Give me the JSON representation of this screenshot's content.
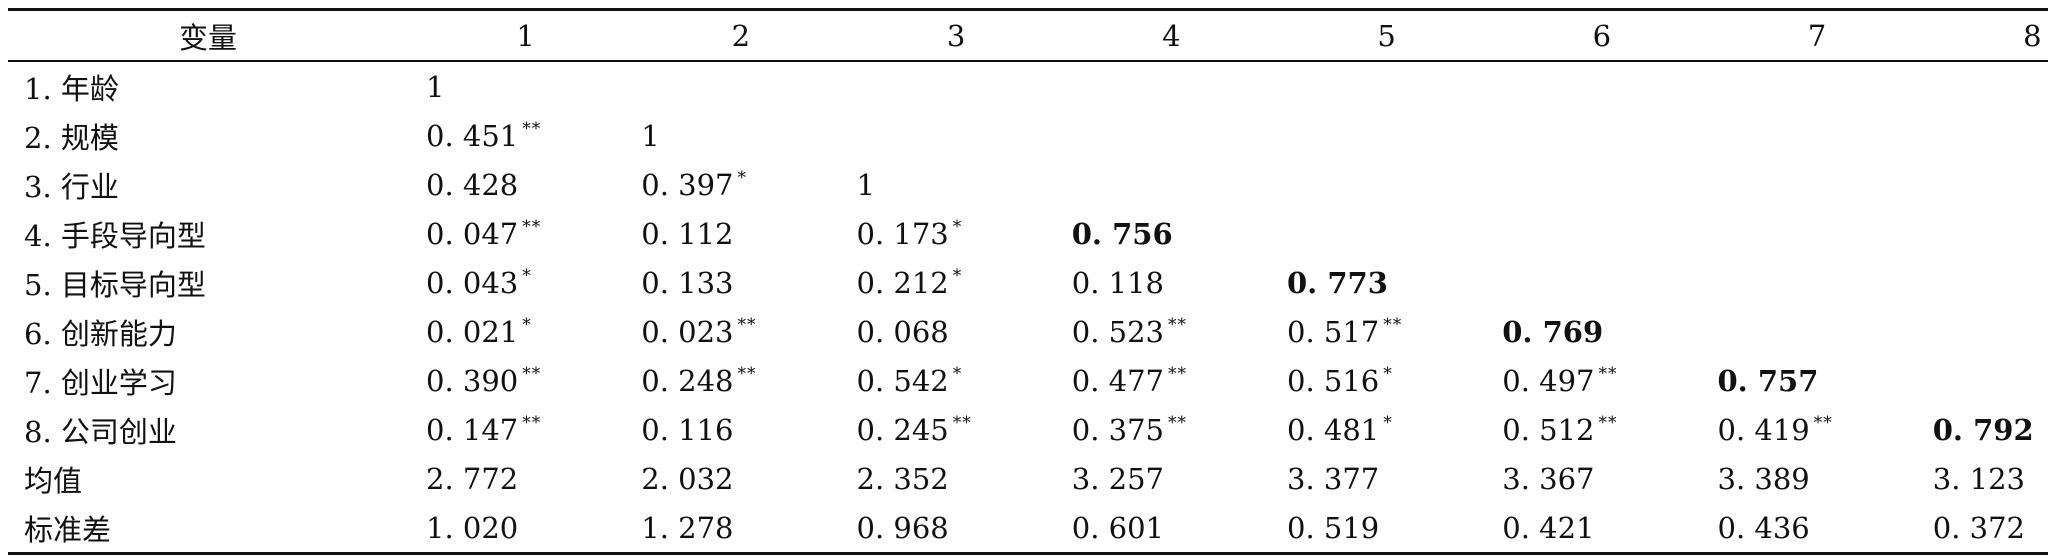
{
  "table": {
    "header": [
      "变量",
      "1",
      "2",
      "3",
      "4",
      "5",
      "6",
      "7",
      "8"
    ],
    "rows": [
      {
        "label": "1. 年龄",
        "cells": [
          {
            "v": "1"
          },
          {
            "v": ""
          },
          {
            "v": ""
          },
          {
            "v": ""
          },
          {
            "v": ""
          },
          {
            "v": ""
          },
          {
            "v": ""
          },
          {
            "v": ""
          }
        ]
      },
      {
        "label": "2. 规模",
        "cells": [
          {
            "v": "0. 451",
            "s": "**"
          },
          {
            "v": "1"
          },
          {
            "v": ""
          },
          {
            "v": ""
          },
          {
            "v": ""
          },
          {
            "v": ""
          },
          {
            "v": ""
          },
          {
            "v": ""
          }
        ]
      },
      {
        "label": "3. 行业",
        "cells": [
          {
            "v": "0. 428"
          },
          {
            "v": "0. 397",
            "s": "*"
          },
          {
            "v": "1"
          },
          {
            "v": ""
          },
          {
            "v": ""
          },
          {
            "v": ""
          },
          {
            "v": ""
          },
          {
            "v": ""
          }
        ]
      },
      {
        "label": "4. 手段导向型",
        "cells": [
          {
            "v": "0. 047",
            "s": "**"
          },
          {
            "v": "0. 112"
          },
          {
            "v": "0. 173",
            "s": "*"
          },
          {
            "v": "0. 756",
            "b": true
          },
          {
            "v": ""
          },
          {
            "v": ""
          },
          {
            "v": ""
          },
          {
            "v": ""
          }
        ]
      },
      {
        "label": "5. 目标导向型",
        "cells": [
          {
            "v": "0. 043",
            "s": "*"
          },
          {
            "v": "0. 133"
          },
          {
            "v": "0. 212",
            "s": "*"
          },
          {
            "v": "0. 118"
          },
          {
            "v": "0. 773",
            "b": true
          },
          {
            "v": ""
          },
          {
            "v": ""
          },
          {
            "v": ""
          }
        ]
      },
      {
        "label": "6. 创新能力",
        "cells": [
          {
            "v": "0. 021",
            "s": "*"
          },
          {
            "v": "0. 023",
            "s": "**"
          },
          {
            "v": "0. 068"
          },
          {
            "v": "0. 523",
            "s": "**"
          },
          {
            "v": "0. 517",
            "s": "**"
          },
          {
            "v": "0. 769",
            "b": true
          },
          {
            "v": ""
          },
          {
            "v": ""
          }
        ]
      },
      {
        "label": "7. 创业学习",
        "cells": [
          {
            "v": "0. 390",
            "s": "**"
          },
          {
            "v": "0. 248",
            "s": "**"
          },
          {
            "v": "0. 542",
            "s": "*"
          },
          {
            "v": "0. 477",
            "s": "**"
          },
          {
            "v": "0. 516",
            "s": "*"
          },
          {
            "v": "0. 497",
            "s": "**"
          },
          {
            "v": "0. 757",
            "b": true
          },
          {
            "v": ""
          }
        ]
      },
      {
        "label": "8. 公司创业",
        "cells": [
          {
            "v": "0. 147",
            "s": "**"
          },
          {
            "v": "0. 116"
          },
          {
            "v": "0. 245",
            "s": "**"
          },
          {
            "v": "0. 375",
            "s": "**"
          },
          {
            "v": "0. 481",
            "s": "*"
          },
          {
            "v": "0. 512",
            "s": "**"
          },
          {
            "v": "0. 419",
            "s": "**"
          },
          {
            "v": "0. 792",
            "b": true
          }
        ]
      },
      {
        "label": "均值",
        "cells": [
          {
            "v": "2. 772"
          },
          {
            "v": "2. 032"
          },
          {
            "v": "2. 352"
          },
          {
            "v": "3. 257"
          },
          {
            "v": "3. 377"
          },
          {
            "v": "3. 367"
          },
          {
            "v": "3. 389"
          },
          {
            "v": "3. 123"
          }
        ]
      },
      {
        "label": "标准差",
        "cells": [
          {
            "v": "1. 020"
          },
          {
            "v": "1. 278"
          },
          {
            "v": "0. 968"
          },
          {
            "v": "0. 601"
          },
          {
            "v": "0. 519"
          },
          {
            "v": "0. 421"
          },
          {
            "v": "0. 436"
          },
          {
            "v": "0. 372"
          }
        ]
      }
    ]
  }
}
